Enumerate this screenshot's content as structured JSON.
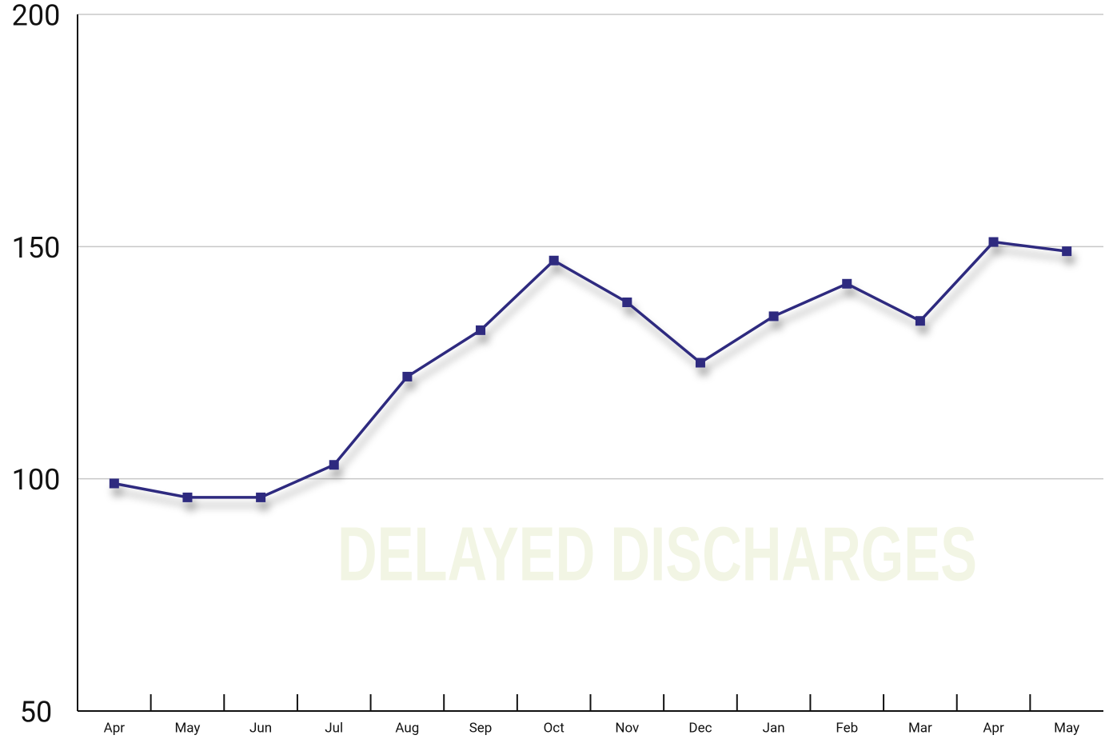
{
  "chart_data": {
    "type": "line",
    "watermark": "DELAYED DISCHARGES",
    "categories": [
      "Apr",
      "May",
      "Jun",
      "Jul",
      "Aug",
      "Sep",
      "Oct",
      "Nov",
      "Dec",
      "Jan",
      "Feb",
      "Mar",
      "Apr",
      "May"
    ],
    "values": [
      99,
      96,
      96,
      103,
      122,
      132,
      147,
      138,
      125,
      135,
      142,
      134,
      151,
      149
    ],
    "color": "#2e2a7f",
    "ylim": [
      50,
      200
    ],
    "yticks": [
      50,
      100,
      150,
      200
    ],
    "grid": true
  }
}
